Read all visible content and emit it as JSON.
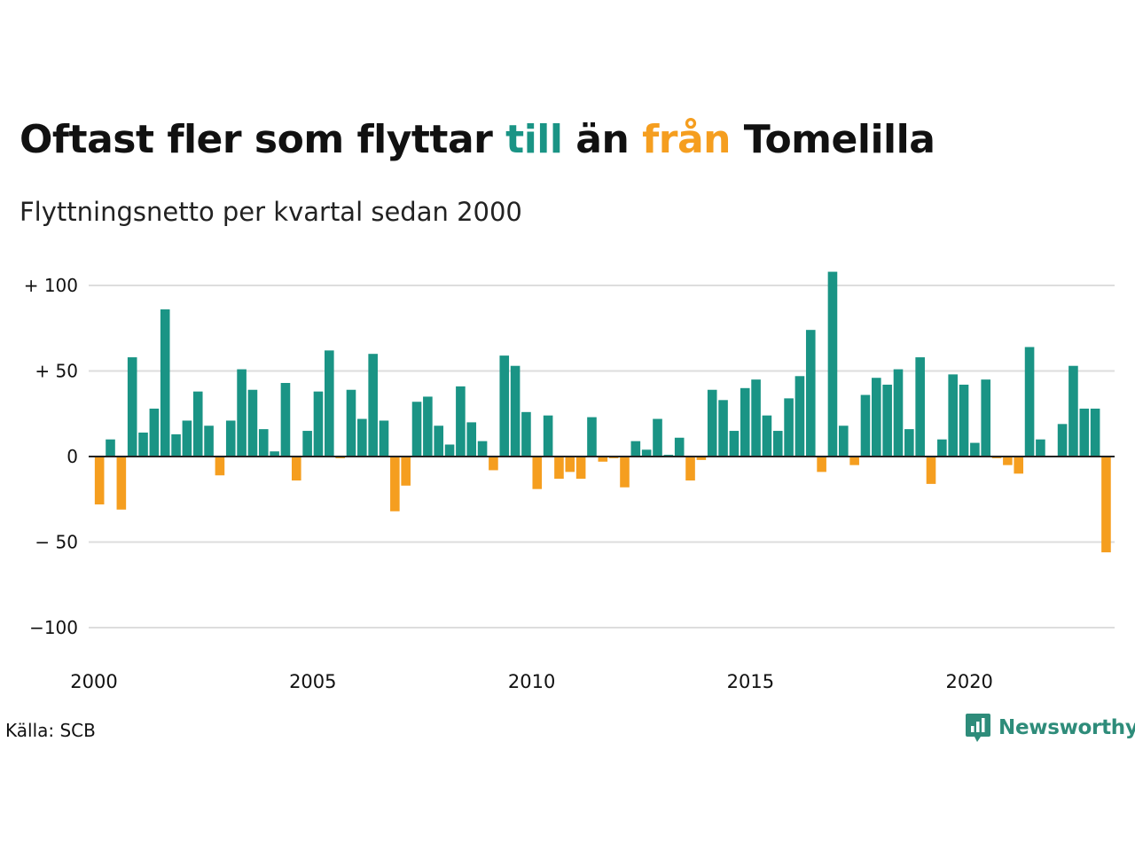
{
  "title": {
    "part1": "Oftast fler som flyttar ",
    "word_in": "till",
    "part2": " än ",
    "word_out": "från",
    "part3": " Tomelilla"
  },
  "subtitle": "Flyttningsnetto per kvartal sedan 2000",
  "source": "Källa: SCB",
  "logo": {
    "text": "Newsworthy",
    "icon": "bar-chart-speech-icon"
  },
  "colors": {
    "positive": "#1a9485",
    "negative": "#f59e1f",
    "grid": "#dddddd",
    "logo": "#2e8c7a"
  },
  "chart_data": {
    "type": "bar",
    "xlabel": "",
    "ylabel": "",
    "ylim": [
      -110,
      115
    ],
    "ticks": [
      {
        "value": 100,
        "label": "+ 100"
      },
      {
        "value": 50,
        "label": "+  50"
      },
      {
        "value": 0,
        "label": "0"
      },
      {
        "value": -50,
        "label": "− 50"
      },
      {
        "value": -100,
        "label": "−100"
      }
    ],
    "x_ticks": [
      {
        "year": 2000,
        "label": "2000"
      },
      {
        "year": 2005,
        "label": "2005"
      },
      {
        "year": 2010,
        "label": "2010"
      },
      {
        "year": 2015,
        "label": "2015"
      },
      {
        "year": 2020,
        "label": "2020"
      }
    ],
    "start_year": 2000,
    "grid": true,
    "values": [
      -28,
      10,
      -31,
      58,
      14,
      28,
      86,
      13,
      21,
      38,
      18,
      -11,
      21,
      51,
      39,
      16,
      3,
      43,
      -14,
      15,
      38,
      62,
      -1,
      39,
      22,
      60,
      21,
      -32,
      -17,
      32,
      35,
      18,
      7,
      41,
      20,
      9,
      -8,
      59,
      53,
      26,
      -19,
      24,
      -13,
      -9,
      -13,
      23,
      -3,
      -1,
      -18,
      9,
      4,
      22,
      1,
      11,
      -14,
      -2,
      39,
      33,
      15,
      40,
      45,
      24,
      15,
      34,
      47,
      74,
      -9,
      108,
      18,
      -5,
      36,
      46,
      42,
      51,
      16,
      58,
      -16,
      10,
      48,
      42,
      8,
      45,
      -1,
      -5,
      -10,
      64,
      10,
      0,
      19,
      53,
      28,
      28,
      -56
    ]
  }
}
